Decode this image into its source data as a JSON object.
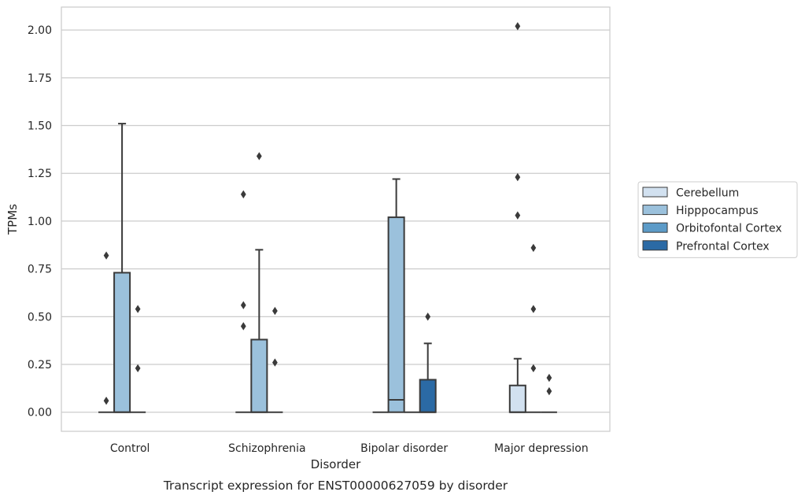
{
  "chart_data": {
    "type": "box",
    "title": "",
    "caption": "Transcript expression for ENST00000627059 by disorder",
    "xlabel": "Disorder",
    "ylabel": "TPMs",
    "ylim": [
      -0.1,
      2.12
    ],
    "yticks": [
      "0.00",
      "0.25",
      "0.50",
      "0.75",
      "1.00",
      "1.25",
      "1.50",
      "1.75",
      "2.00"
    ],
    "grid": true,
    "legend_position": "right",
    "categories": [
      "Control",
      "Schizophrenia",
      "Bipolar disorder",
      "Major depression"
    ],
    "series": [
      {
        "name": "Cerebellum",
        "color": "#d2e1f0",
        "boxes": [
          {
            "q1": 0,
            "median": 0,
            "q3": 0,
            "whisker_low": 0,
            "whisker_high": 0,
            "outliers": [
              0.06,
              0.82
            ]
          },
          {
            "q1": 0,
            "median": 0,
            "q3": 0,
            "whisker_low": 0,
            "whisker_high": 0,
            "outliers": [
              0.45,
              0.56,
              1.14
            ]
          },
          {
            "q1": 0,
            "median": 0,
            "q3": 0,
            "whisker_low": 0,
            "whisker_high": 0,
            "outliers": []
          },
          {
            "q1": 0,
            "median": 0,
            "q3": 0.14,
            "whisker_low": 0,
            "whisker_high": 0.28,
            "outliers": [
              1.03,
              1.23,
              2.02
            ]
          }
        ]
      },
      {
        "name": "Hipppocampus",
        "color": "#9bc1dc",
        "boxes": [
          {
            "q1": 0,
            "median": 0,
            "q3": 0.73,
            "whisker_low": 0,
            "whisker_high": 1.51,
            "outliers": []
          },
          {
            "q1": 0,
            "median": 0,
            "q3": 0.38,
            "whisker_low": 0,
            "whisker_high": 0.85,
            "outliers": [
              1.34
            ]
          },
          {
            "q1": 0,
            "median": 0.065,
            "q3": 1.02,
            "whisker_low": 0,
            "whisker_high": 1.22,
            "outliers": []
          },
          {
            "q1": 0,
            "median": 0,
            "q3": 0,
            "whisker_low": 0,
            "whisker_high": 0,
            "outliers": [
              0.23,
              0.54,
              0.86
            ]
          }
        ]
      },
      {
        "name": "Orbitofontal Cortex",
        "color": "#5c9bc8",
        "boxes": [
          {
            "q1": 0,
            "median": 0,
            "q3": 0,
            "whisker_low": 0,
            "whisker_high": 0,
            "outliers": [
              0.23,
              0.54
            ]
          },
          {
            "q1": 0,
            "median": 0,
            "q3": 0,
            "whisker_low": 0,
            "whisker_high": 0,
            "outliers": [
              0.26,
              0.53
            ]
          },
          {
            "q1": 0,
            "median": 0,
            "q3": 0,
            "whisker_low": 0,
            "whisker_high": 0,
            "outliers": []
          },
          {
            "q1": 0,
            "median": 0,
            "q3": 0,
            "whisker_low": 0,
            "whisker_high": 0,
            "outliers": [
              0.11,
              0.18
            ]
          }
        ]
      },
      {
        "name": "Prefrontal Cortex",
        "color": "#2b6aa5",
        "boxes": [
          null,
          null,
          {
            "q1": 0,
            "median": 0,
            "q3": 0.17,
            "whisker_low": 0,
            "whisker_high": 0.36,
            "outliers": [
              0.5
            ]
          },
          null
        ]
      }
    ]
  }
}
